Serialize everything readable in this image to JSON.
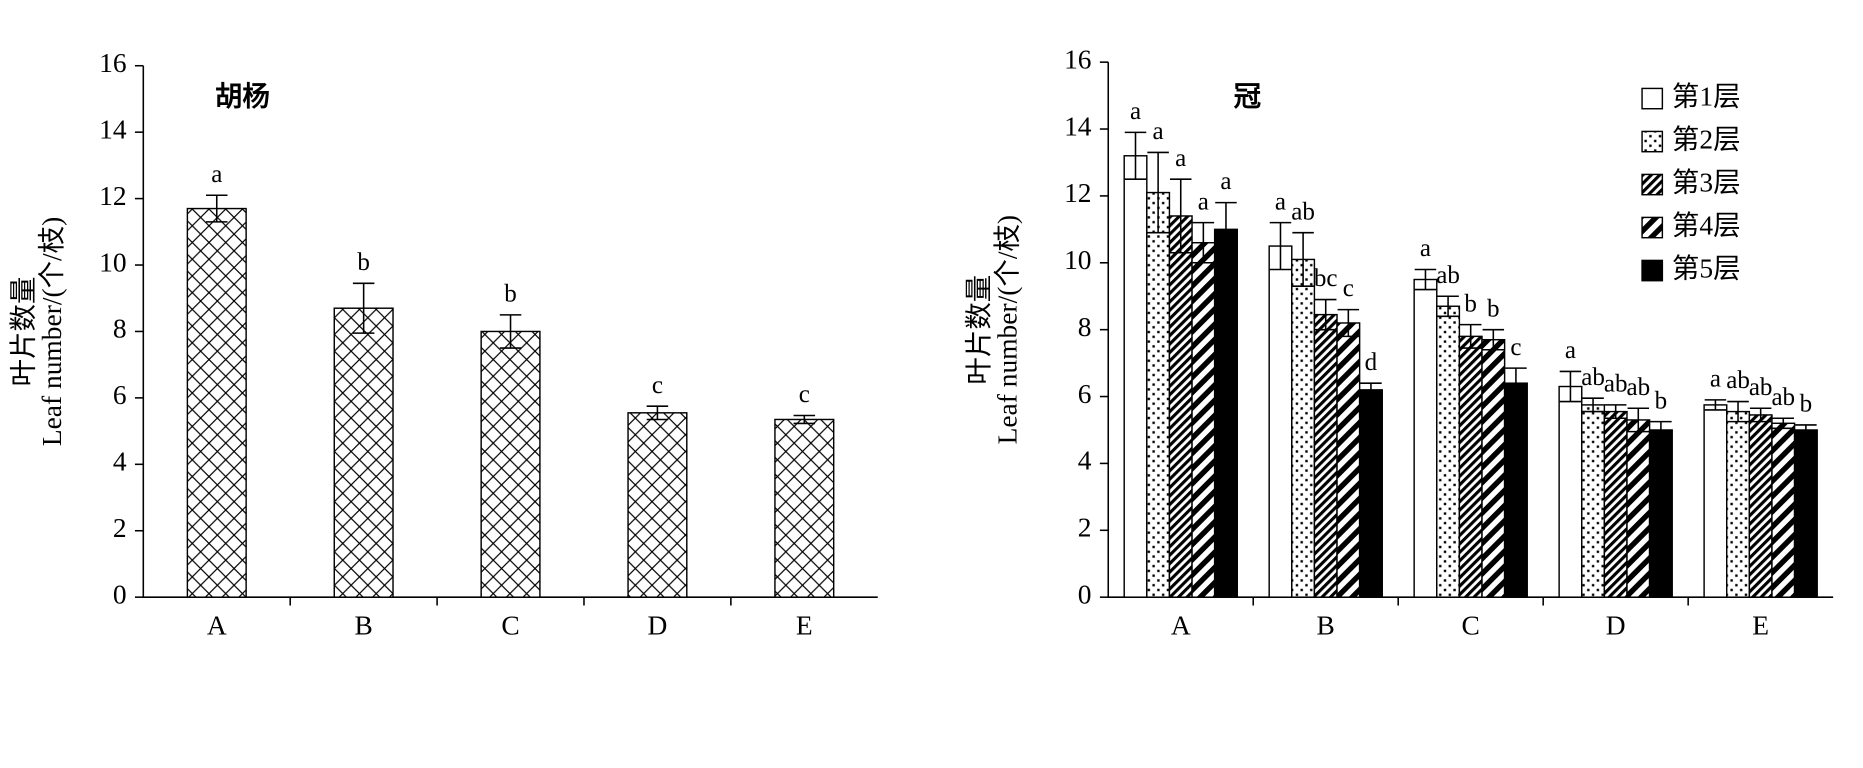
{
  "chart_data": [
    {
      "type": "bar",
      "title": "胡杨",
      "y_label_lines": [
        "叶片数量",
        "Leaf number/(个/枝)"
      ],
      "categories": [
        "A",
        "B",
        "C",
        "D",
        "E"
      ],
      "series": [
        {
          "color": "#000000",
          "hatch": "crosshatch",
          "values": [
            11.7,
            8.7,
            8.0,
            5.55,
            5.35
          ],
          "errors": [
            0.4,
            0.75,
            0.5,
            0.2,
            0.12
          ],
          "letters": [
            "a",
            "b",
            "b",
            "c",
            "c"
          ]
        }
      ],
      "ylim": [
        0,
        16
      ],
      "yticks": [
        0,
        2,
        4,
        6,
        8,
        10,
        12,
        14,
        16
      ]
    },
    {
      "type": "bar",
      "title": "冠",
      "y_label_lines": [
        "叶片数量",
        "Leaf number/(个/枝)"
      ],
      "categories": [
        "A",
        "B",
        "C",
        "D",
        "E"
      ],
      "series": [
        {
          "name": "第1层",
          "color": "#000000",
          "hatch": "none",
          "values": [
            13.2,
            10.5,
            9.5,
            6.3,
            5.75
          ],
          "errors": [
            0.7,
            0.7,
            0.3,
            0.45,
            0.15
          ],
          "letters": [
            "a",
            "a",
            "a",
            "a",
            "a"
          ]
        },
        {
          "name": "第2层",
          "color": "#000000",
          "hatch": "dots",
          "values": [
            12.1,
            10.1,
            8.7,
            5.75,
            5.55
          ],
          "errors": [
            1.2,
            0.8,
            0.3,
            0.2,
            0.3
          ],
          "letters": [
            "a",
            "ab",
            "ab",
            "ab",
            "ab"
          ]
        },
        {
          "name": "第3层",
          "color": "#000000",
          "hatch": "dense-diagonal",
          "values": [
            11.4,
            8.45,
            7.8,
            5.55,
            5.45
          ],
          "errors": [
            1.1,
            0.45,
            0.35,
            0.2,
            0.2
          ],
          "letters": [
            "a",
            "bc",
            "b",
            "ab",
            "ab"
          ]
        },
        {
          "name": "第4层",
          "color": "#000000",
          "hatch": "wide-diagonal",
          "values": [
            10.6,
            8.2,
            7.7,
            5.3,
            5.2
          ],
          "errors": [
            0.6,
            0.4,
            0.3,
            0.35,
            0.15
          ],
          "letters": [
            "a",
            "c",
            "b",
            "ab",
            "ab"
          ]
        },
        {
          "name": "第5层",
          "color": "#000000",
          "hatch": "solid",
          "values": [
            11.0,
            6.2,
            6.4,
            5.0,
            5.0
          ],
          "errors": [
            0.8,
            0.2,
            0.45,
            0.25,
            0.15
          ],
          "letters": [
            "a",
            "d",
            "c",
            "b",
            "b"
          ]
        }
      ],
      "ylim": [
        0,
        16
      ],
      "yticks": [
        0,
        2,
        4,
        6,
        8,
        10,
        12,
        14,
        16
      ],
      "legend": "top-right"
    }
  ]
}
